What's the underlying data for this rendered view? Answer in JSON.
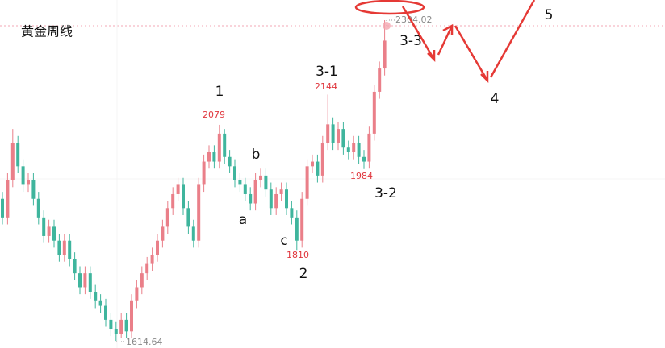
{
  "chart_data": {
    "type": "candlestick",
    "title": "黄金周线",
    "up_color": "#ea7f89",
    "down_color": "#3fb59d",
    "ylim": [
      1599.2,
      2347.3
    ],
    "categories": [
      null,
      null,
      null,
      null,
      null,
      null,
      null,
      null,
      null,
      null,
      null,
      null,
      null,
      null,
      null,
      null,
      null,
      null,
      null,
      null,
      null,
      null,
      null,
      null,
      null,
      null,
      null,
      null,
      null,
      null,
      null,
      null,
      null,
      null,
      null,
      null,
      null,
      null,
      null,
      null,
      null,
      null,
      null,
      null,
      null,
      null,
      null,
      null,
      null,
      null,
      null,
      null,
      null,
      null,
      null,
      null,
      null,
      null,
      null,
      null,
      null,
      null,
      null,
      null,
      null,
      null,
      null,
      null,
      null,
      null,
      null,
      null,
      null,
      null,
      null
    ],
    "open": [
      1920,
      1880,
      1960,
      2040,
      1990,
      1950,
      1960,
      1920,
      1880,
      1840,
      1860,
      1830,
      1800,
      1830,
      1790,
      1760,
      1730,
      1760,
      1720,
      1700,
      1690,
      1660,
      1640,
      1630,
      1660,
      1635,
      1700,
      1730,
      1760,
      1780,
      1800,
      1830,
      1860,
      1900,
      1930,
      1950,
      1900,
      1860,
      1830,
      1950,
      2000,
      2020,
      2000,
      2060,
      2010,
      1990,
      1960,
      1950,
      1930,
      1910,
      1960,
      1970,
      1940,
      1900,
      1930,
      1940,
      1900,
      1880,
      1830,
      1920,
      1990,
      2000,
      1970,
      2040,
      2080,
      2040,
      2070,
      2030,
      2020,
      2040,
      2010,
      2000,
      2060,
      2150,
      2200
    ],
    "high": [
      1935,
      1975,
      2070,
      2055,
      2005,
      1975,
      1975,
      1935,
      1895,
      1875,
      1875,
      1845,
      1845,
      1845,
      1805,
      1775,
      1775,
      1775,
      1735,
      1715,
      1705,
      1675,
      1655,
      1675,
      1675,
      1715,
      1745,
      1775,
      1795,
      1815,
      1845,
      1875,
      1915,
      1945,
      1965,
      1965,
      1915,
      1875,
      1965,
      2015,
      2035,
      2035,
      2079,
      2070,
      2025,
      2005,
      1975,
      1965,
      1945,
      1975,
      1985,
      1985,
      1955,
      1945,
      1955,
      1955,
      1915,
      1895,
      1935,
      2005,
      2015,
      2015,
      2055,
      2144,
      2095,
      2085,
      2085,
      2045,
      2055,
      2055,
      2025,
      2075,
      2165,
      2215,
      2304.02
    ],
    "low": [
      1865,
      1865,
      1945,
      1975,
      1935,
      1935,
      1905,
      1865,
      1825,
      1825,
      1815,
      1785,
      1785,
      1775,
      1745,
      1715,
      1715,
      1705,
      1685,
      1675,
      1645,
      1625,
      1614.64,
      1620,
      1620,
      1620,
      1685,
      1715,
      1745,
      1765,
      1785,
      1815,
      1845,
      1885,
      1915,
      1885,
      1845,
      1815,
      1815,
      1935,
      1985,
      1985,
      1985,
      1995,
      1975,
      1945,
      1935,
      1915,
      1895,
      1895,
      1945,
      1925,
      1885,
      1885,
      1915,
      1885,
      1865,
      1810,
      1815,
      1905,
      1975,
      1955,
      1955,
      2025,
      2025,
      2025,
      2015,
      2005,
      2005,
      1995,
      1984,
      1985,
      2045,
      2135,
      2185
    ],
    "close": [
      1880,
      1960,
      2040,
      1990,
      1950,
      1960,
      1920,
      1880,
      1840,
      1860,
      1830,
      1800,
      1830,
      1790,
      1760,
      1730,
      1760,
      1720,
      1700,
      1690,
      1660,
      1640,
      1630,
      1660,
      1635,
      1700,
      1730,
      1760,
      1780,
      1800,
      1830,
      1860,
      1900,
      1930,
      1950,
      1900,
      1860,
      1830,
      1950,
      2000,
      2020,
      2000,
      2060,
      2010,
      1990,
      1960,
      1950,
      1930,
      1910,
      1960,
      1970,
      1940,
      1900,
      1930,
      1940,
      1900,
      1880,
      1830,
      1920,
      1990,
      2000,
      1970,
      2040,
      2080,
      2040,
      2070,
      2030,
      2020,
      2040,
      2010,
      2000,
      2060,
      2150,
      2200,
      2260
    ],
    "price_labels": [
      2079,
      2144,
      1984,
      1810
    ],
    "max_label": 2304.02,
    "min_label": 1614.64,
    "annotations": [
      "1",
      "a",
      "b",
      "c",
      "2",
      "3-1",
      "3-2",
      "3-3",
      "4",
      "5"
    ]
  }
}
